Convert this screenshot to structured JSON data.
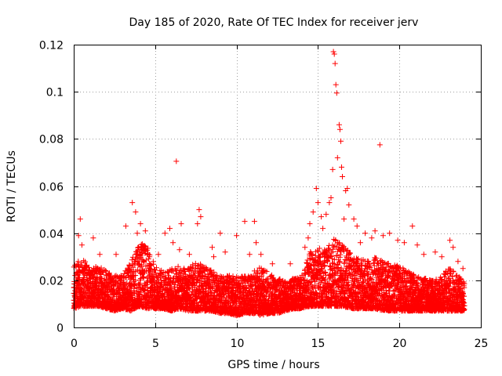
{
  "chart_data": {
    "type": "scatter",
    "title": "Day 185 of 2020, Rate Of TEC Index for receiver jerv",
    "xlabel": "GPS time / hours",
    "ylabel": "ROTI / TECUs",
    "xlim": [
      0,
      25
    ],
    "ylim": [
      0,
      0.12
    ],
    "xticks": [
      0,
      5,
      10,
      15,
      20,
      25
    ],
    "xtick_labels": [
      "0",
      "5",
      "10",
      "15",
      "20",
      "25"
    ],
    "yticks": [
      0,
      0.02,
      0.04,
      0.06,
      0.08,
      0.1,
      0.12
    ],
    "ytick_labels": [
      "0",
      "0.02",
      "0.04",
      "0.06",
      "0.08",
      "0.1",
      "0.12"
    ],
    "grid": true,
    "marker": "+",
    "color": "#ff0000",
    "data_range_hours": [
      0,
      24
    ],
    "series": [
      {
        "name": "ROTI",
        "points": [
          [
            0.3,
            0.039
          ],
          [
            0.4,
            0.046
          ],
          [
            0.5,
            0.035
          ],
          [
            1.2,
            0.038
          ],
          [
            1.6,
            0.031
          ],
          [
            2.6,
            0.031
          ],
          [
            3.2,
            0.043
          ],
          [
            3.6,
            0.053
          ],
          [
            3.8,
            0.049
          ],
          [
            3.9,
            0.04
          ],
          [
            4.1,
            0.044
          ],
          [
            4.4,
            0.041
          ],
          [
            5.2,
            0.031
          ],
          [
            5.6,
            0.04
          ],
          [
            5.9,
            0.042
          ],
          [
            6.1,
            0.036
          ],
          [
            6.3,
            0.0705
          ],
          [
            6.5,
            0.033
          ],
          [
            6.6,
            0.044
          ],
          [
            7.1,
            0.031
          ],
          [
            7.6,
            0.044
          ],
          [
            7.7,
            0.05
          ],
          [
            7.8,
            0.047
          ],
          [
            8.5,
            0.034
          ],
          [
            8.6,
            0.03
          ],
          [
            9.0,
            0.04
          ],
          [
            9.3,
            0.032
          ],
          [
            10.0,
            0.039
          ],
          [
            10.5,
            0.045
          ],
          [
            10.8,
            0.031
          ],
          [
            11.1,
            0.045
          ],
          [
            11.2,
            0.036
          ],
          [
            11.5,
            0.031
          ],
          [
            12.2,
            0.027
          ],
          [
            13.3,
            0.027
          ],
          [
            14.2,
            0.034
          ],
          [
            14.4,
            0.038
          ],
          [
            14.5,
            0.044
          ],
          [
            14.7,
            0.049
          ],
          [
            14.9,
            0.059
          ],
          [
            15.0,
            0.053
          ],
          [
            15.2,
            0.047
          ],
          [
            15.3,
            0.042
          ],
          [
            15.5,
            0.048
          ],
          [
            15.7,
            0.053
          ],
          [
            15.8,
            0.055
          ],
          [
            15.9,
            0.067
          ],
          [
            15.95,
            0.117
          ],
          [
            16.0,
            0.116
          ],
          [
            16.05,
            0.112
          ],
          [
            16.1,
            0.103
          ],
          [
            16.15,
            0.0995
          ],
          [
            16.2,
            0.072
          ],
          [
            16.3,
            0.086
          ],
          [
            16.35,
            0.084
          ],
          [
            16.4,
            0.079
          ],
          [
            16.45,
            0.068
          ],
          [
            16.5,
            0.064
          ],
          [
            16.6,
            0.046
          ],
          [
            16.7,
            0.058
          ],
          [
            16.8,
            0.059
          ],
          [
            16.9,
            0.052
          ],
          [
            17.2,
            0.046
          ],
          [
            17.4,
            0.043
          ],
          [
            17.6,
            0.036
          ],
          [
            17.9,
            0.04
          ],
          [
            18.3,
            0.038
          ],
          [
            18.5,
            0.041
          ],
          [
            18.8,
            0.0775
          ],
          [
            19.0,
            0.039
          ],
          [
            19.4,
            0.04
          ],
          [
            19.9,
            0.037
          ],
          [
            20.3,
            0.036
          ],
          [
            20.8,
            0.043
          ],
          [
            21.1,
            0.035
          ],
          [
            21.5,
            0.031
          ],
          [
            22.2,
            0.032
          ],
          [
            22.6,
            0.03
          ],
          [
            23.1,
            0.037
          ],
          [
            23.3,
            0.034
          ],
          [
            23.6,
            0.028
          ],
          [
            23.9,
            0.025
          ]
        ],
        "envelope_hours": [
          0,
          0.5,
          1,
          1.5,
          2,
          2.5,
          3,
          3.5,
          4,
          4.5,
          5,
          5.5,
          6,
          6.5,
          7,
          7.5,
          8,
          8.5,
          9,
          9.5,
          10,
          10.5,
          11,
          11.5,
          12,
          12.5,
          13,
          13.5,
          14,
          14.5,
          15,
          15.5,
          16,
          16.5,
          17,
          17.5,
          18,
          18.5,
          19,
          19.5,
          20,
          20.5,
          21,
          21.5,
          22,
          22.5,
          23,
          23.5,
          24
        ],
        "envelope_min": [
          0.008,
          0.009,
          0.009,
          0.009,
          0.008,
          0.007,
          0.008,
          0.007,
          0.009,
          0.008,
          0.008,
          0.008,
          0.007,
          0.008,
          0.007,
          0.007,
          0.007,
          0.007,
          0.006,
          0.006,
          0.005,
          0.006,
          0.006,
          0.005,
          0.006,
          0.006,
          0.007,
          0.008,
          0.008,
          0.009,
          0.009,
          0.009,
          0.009,
          0.009,
          0.008,
          0.008,
          0.008,
          0.008,
          0.007,
          0.007,
          0.007,
          0.007,
          0.007,
          0.007,
          0.007,
          0.007,
          0.007,
          0.007,
          0.007
        ],
        "envelope_max": [
          0.026,
          0.03,
          0.025,
          0.026,
          0.024,
          0.022,
          0.022,
          0.028,
          0.036,
          0.035,
          0.026,
          0.024,
          0.025,
          0.026,
          0.025,
          0.028,
          0.026,
          0.024,
          0.022,
          0.022,
          0.022,
          0.022,
          0.025,
          0.026,
          0.023,
          0.021,
          0.02,
          0.021,
          0.022,
          0.033,
          0.034,
          0.033,
          0.038,
          0.035,
          0.032,
          0.03,
          0.028,
          0.03,
          0.028,
          0.027,
          0.026,
          0.024,
          0.023,
          0.021,
          0.02,
          0.021,
          0.026,
          0.023,
          0.02
        ]
      }
    ]
  }
}
